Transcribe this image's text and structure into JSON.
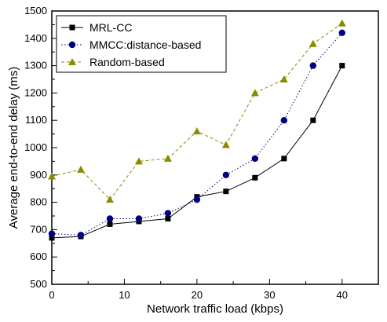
{
  "chart_data": {
    "type": "line",
    "xlabel": "Network traffic load (kbps)",
    "ylabel": "Average end-to-end delay (ms)",
    "xlim": [
      0,
      45
    ],
    "ylim": [
      500,
      1500
    ],
    "x_ticks": [
      0,
      10,
      20,
      30,
      40
    ],
    "y_ticks": [
      500,
      600,
      700,
      800,
      900,
      1000,
      1100,
      1200,
      1300,
      1400,
      1500
    ],
    "x_tick_labels": [
      "0",
      "10",
      "20",
      "30",
      "40"
    ],
    "y_tick_labels": [
      "500",
      "600",
      "700",
      "800",
      "900",
      "1000",
      "1100",
      "1200",
      "1300",
      "1400",
      "1500"
    ],
    "grid": false,
    "legend_position": "top-left",
    "x": [
      0,
      4,
      8,
      12,
      16,
      20,
      24,
      28,
      32,
      36,
      40
    ],
    "series": [
      {
        "name": "MRL-CC",
        "values": [
          670,
          675,
          720,
          730,
          740,
          820,
          840,
          890,
          960,
          1100,
          1300
        ],
        "color": "#000000",
        "marker": "square",
        "line_style": "solid"
      },
      {
        "name": "MMCC:distance-based",
        "values": [
          685,
          680,
          740,
          740,
          760,
          810,
          900,
          960,
          1100,
          1300,
          1420
        ],
        "color": "#000080",
        "marker": "circle",
        "line_style": "dotted"
      },
      {
        "name": "Random-based",
        "values": [
          895,
          920,
          810,
          950,
          960,
          1060,
          1010,
          1200,
          1250,
          1380,
          1455
        ],
        "color": "#8b8b00",
        "marker": "triangle",
        "line_style": "dashed"
      }
    ]
  }
}
